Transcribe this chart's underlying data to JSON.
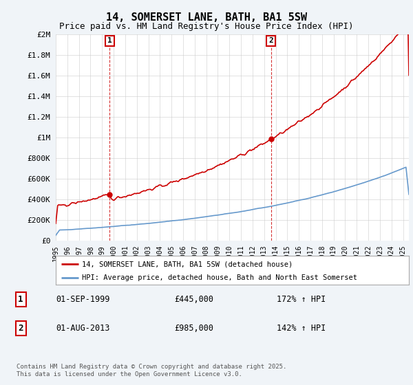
{
  "title": "14, SOMERSET LANE, BATH, BA1 5SW",
  "subtitle": "Price paid vs. HM Land Registry's House Price Index (HPI)",
  "legend_line1": "14, SOMERSET LANE, BATH, BA1 5SW (detached house)",
  "legend_line2": "HPI: Average price, detached house, Bath and North East Somerset",
  "annotation1_date": "01-SEP-1999",
  "annotation1_price": "£445,000",
  "annotation1_hpi": "172% ↑ HPI",
  "annotation2_date": "01-AUG-2013",
  "annotation2_price": "£985,000",
  "annotation2_hpi": "142% ↑ HPI",
  "footer": "Contains HM Land Registry data © Crown copyright and database right 2025.\nThis data is licensed under the Open Government Licence v3.0.",
  "line_color_red": "#cc0000",
  "line_color_blue": "#6699cc",
  "background_color": "#f0f4f8",
  "plot_bg_color": "#ffffff",
  "ylim": [
    0,
    2000000
  ],
  "yticks": [
    0,
    200000,
    400000,
    600000,
    800000,
    1000000,
    1200000,
    1400000,
    1600000,
    1800000,
    2000000
  ],
  "xlim_start": 1995.0,
  "xlim_end": 2025.5,
  "sale1_year": 1999.667,
  "sale1_price": 445000,
  "sale2_year": 2013.583,
  "sale2_price": 985000
}
